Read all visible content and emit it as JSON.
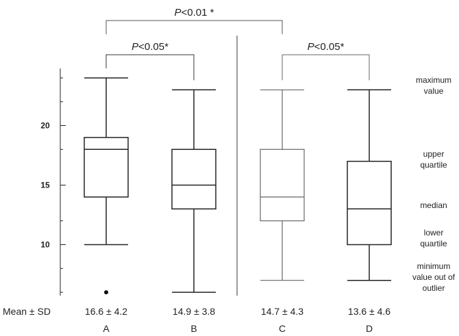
{
  "chart_data": {
    "type": "boxplot",
    "title": "",
    "xlabel": "",
    "ylabel": "",
    "ylim": [
      4.5,
      26
    ],
    "y_ticks": [
      10,
      15,
      20
    ],
    "y_tick_labels": [
      "10",
      "15",
      "20"
    ],
    "grid": false,
    "categories": [
      "A",
      "B",
      "C",
      "D"
    ],
    "boxes": [
      {
        "category": "A",
        "min": 10,
        "q1": 14,
        "median": 18,
        "q3": 19,
        "max": 24,
        "outliers": [
          6
        ]
      },
      {
        "category": "B",
        "min": 6,
        "q1": 13,
        "median": 15,
        "q3": 18,
        "max": 23,
        "outliers": []
      },
      {
        "category": "C",
        "min": 7,
        "q1": 12,
        "median": 14,
        "q3": 18,
        "max": 23,
        "outliers": []
      },
      {
        "category": "D",
        "min": 7,
        "q1": 10,
        "median": 13,
        "q3": 17,
        "max": 23,
        "outliers": []
      }
    ],
    "stats_row_label": "Mean ± SD",
    "stats": [
      "16.6 ± 4.2",
      "14.9 ± 3.8",
      "14.7 ± 4.3",
      "13.6 ± 4.6"
    ],
    "significance": [
      {
        "between": [
          "A",
          "B"
        ],
        "italic": "P",
        "text": "<0.05",
        "star": "*"
      },
      {
        "between": [
          "C",
          "D"
        ],
        "italic": "P",
        "text": "<0.05",
        "star": "*"
      },
      {
        "between": [
          "A",
          "C"
        ],
        "italic": "P",
        "text": "<0.01 ",
        "star": "*"
      }
    ],
    "annotations": [
      {
        "lines": [
          "maximum",
          "value"
        ]
      },
      {
        "lines": [
          "upper",
          "quartile"
        ]
      },
      {
        "lines": [
          "median"
        ]
      },
      {
        "lines": [
          "lower",
          "quartile"
        ]
      },
      {
        "lines": [
          "minimum",
          "value out of",
          "outlier"
        ]
      }
    ],
    "colors": {
      "stroke_dark": "#222222",
      "stroke_light": "#666666"
    }
  }
}
